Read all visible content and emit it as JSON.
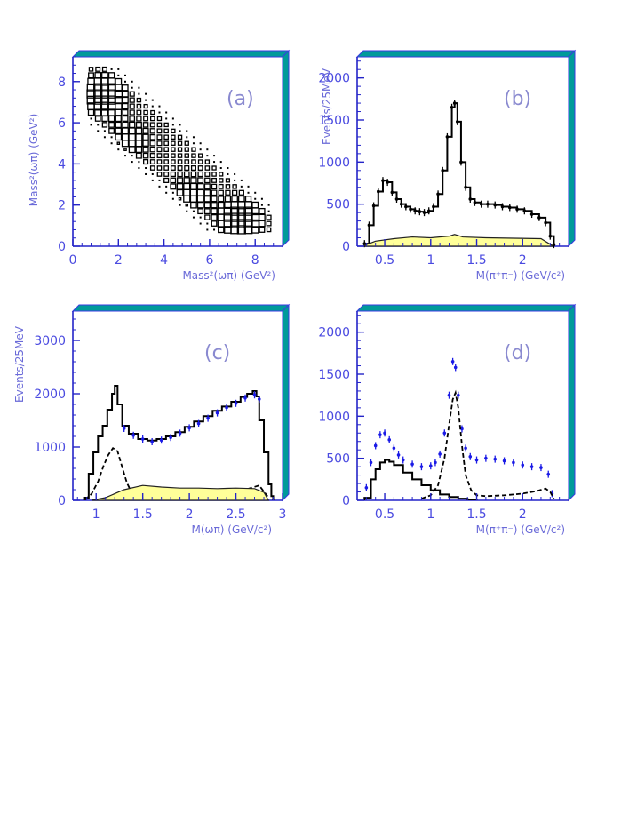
{
  "chart_data": [
    {
      "panel": "(a)",
      "type": "heatmap",
      "xlabel": "Mass²(ωπ) (GeV²)",
      "ylabel": "Mass²(ωπ) (GeV²)",
      "xlim": [
        0,
        9.2
      ],
      "ylim": [
        0,
        9.2
      ],
      "x_ticks": [
        0,
        2,
        4,
        6,
        8
      ],
      "y_ticks": [
        0,
        2,
        4,
        6,
        8
      ],
      "grid": false,
      "hotspots": [
        [
          1.3,
          7.4,
          1.0
        ],
        [
          7.4,
          1.3,
          1.0
        ],
        [
          2.5,
          5.2,
          0.45
        ],
        [
          5.2,
          2.5,
          0.45
        ]
      ]
    },
    {
      "panel": "(b)",
      "type": "line",
      "xlabel": "M(π⁺π⁻) (GeV/c²)",
      "ylabel": "Events/25MeV",
      "xlim": [
        0.2,
        2.5
      ],
      "ylim": [
        0,
        2250
      ],
      "x_ticks": [
        0.5,
        1,
        1.5,
        2
      ],
      "x_tick_labels": [
        "0.5",
        "1",
        "1.5",
        "2"
      ],
      "y_ticks": [
        0,
        500,
        1000,
        1500,
        2000
      ],
      "series": [
        {
          "style": "data-black",
          "x": [
            0.28,
            0.33,
            0.38,
            0.43,
            0.48,
            0.53,
            0.58,
            0.63,
            0.68,
            0.73,
            0.78,
            0.83,
            0.88,
            0.93,
            0.98,
            1.03,
            1.08,
            1.13,
            1.18,
            1.23,
            1.26,
            1.29,
            1.33,
            1.38,
            1.43,
            1.48,
            1.55,
            1.62,
            1.7,
            1.78,
            1.86,
            1.94,
            2.02,
            2.1,
            2.18,
            2.25,
            2.3,
            2.34
          ],
          "y": [
            30,
            250,
            480,
            650,
            780,
            760,
            640,
            560,
            500,
            470,
            440,
            420,
            410,
            400,
            420,
            470,
            620,
            900,
            1300,
            1650,
            1700,
            1480,
            1000,
            700,
            560,
            520,
            500,
            500,
            490,
            470,
            460,
            440,
            420,
            380,
            340,
            280,
            120,
            20
          ]
        },
        {
          "style": "background-fill",
          "x": [
            0.28,
            0.4,
            0.6,
            0.8,
            1.0,
            1.2,
            1.26,
            1.35,
            1.6,
            1.9,
            2.2,
            2.32
          ],
          "y": [
            10,
            60,
            90,
            110,
            100,
            120,
            140,
            110,
            100,
            95,
            90,
            10
          ]
        }
      ]
    },
    {
      "panel": "(c)",
      "type": "line",
      "xlabel": "M(ωπ) (GeV/c²)",
      "ylabel": "Events/25MeV",
      "xlim": [
        0.75,
        3.0
      ],
      "ylim": [
        0,
        3550
      ],
      "x_ticks": [
        1,
        1.5,
        2,
        2.5,
        3
      ],
      "x_tick_labels": [
        "1",
        "1.5",
        "2",
        "2.5",
        "3"
      ],
      "y_ticks": [
        0,
        1000,
        2000,
        3000
      ],
      "series": [
        {
          "style": "fit-solid",
          "x": [
            0.87,
            0.92,
            0.97,
            1.02,
            1.07,
            1.12,
            1.17,
            1.2,
            1.23,
            1.28,
            1.35,
            1.45,
            1.55,
            1.65,
            1.75,
            1.85,
            1.95,
            2.05,
            2.15,
            2.25,
            2.35,
            2.45,
            2.55,
            2.62,
            2.68,
            2.72,
            2.75,
            2.8,
            2.85,
            2.88,
            2.9
          ],
          "y": [
            50,
            500,
            900,
            1200,
            1400,
            1700,
            2000,
            2150,
            1800,
            1400,
            1250,
            1150,
            1120,
            1150,
            1200,
            1280,
            1380,
            1480,
            1580,
            1680,
            1760,
            1850,
            1940,
            2000,
            2050,
            1950,
            1500,
            900,
            300,
            80,
            0
          ]
        },
        {
          "style": "data-blue",
          "x": [
            1.3,
            1.4,
            1.5,
            1.6,
            1.7,
            1.8,
            1.9,
            2.0,
            2.1,
            2.2,
            2.3,
            2.4,
            2.5,
            2.6,
            2.7,
            2.75
          ],
          "y": [
            1350,
            1220,
            1150,
            1100,
            1130,
            1180,
            1260,
            1360,
            1440,
            1540,
            1640,
            1740,
            1820,
            1920,
            1980,
            1900
          ]
        },
        {
          "style": "dashed-component",
          "x": [
            0.88,
            0.95,
            1.02,
            1.08,
            1.13,
            1.18,
            1.23,
            1.28,
            1.33,
            1.38,
            1.42,
            1.5,
            1.6,
            1.8,
            2.0,
            2.2,
            2.4,
            2.6,
            2.75,
            2.85
          ],
          "y": [
            10,
            120,
            350,
            650,
            850,
            980,
            920,
            620,
            330,
            150,
            80,
            120,
            180,
            200,
            210,
            200,
            190,
            200,
            280,
            50
          ]
        },
        {
          "style": "background-fill",
          "x": [
            0.95,
            1.1,
            1.3,
            1.5,
            1.7,
            1.9,
            2.1,
            2.3,
            2.5,
            2.7,
            2.8,
            2.85
          ],
          "y": [
            0,
            50,
            200,
            280,
            250,
            230,
            230,
            220,
            230,
            220,
            150,
            0
          ]
        }
      ]
    },
    {
      "panel": "(d)",
      "type": "line",
      "xlabel": "M(π⁺π⁻) (GeV/c²)",
      "xlim": [
        0.2,
        2.5
      ],
      "ylim": [
        0,
        2250
      ],
      "x_ticks": [
        0.5,
        1,
        1.5,
        2
      ],
      "x_tick_labels": [
        "0.5",
        "1",
        "1.5",
        "2"
      ],
      "y_ticks": [
        0,
        500,
        1000,
        1500,
        2000
      ],
      "series": [
        {
          "style": "data-blue",
          "x": [
            0.3,
            0.35,
            0.4,
            0.45,
            0.5,
            0.55,
            0.6,
            0.65,
            0.7,
            0.8,
            0.9,
            1.0,
            1.05,
            1.1,
            1.15,
            1.2,
            1.24,
            1.27,
            1.3,
            1.34,
            1.38,
            1.43,
            1.5,
            1.6,
            1.7,
            1.8,
            1.9,
            2.0,
            2.1,
            2.2,
            2.28,
            2.32
          ],
          "y": [
            150,
            450,
            650,
            780,
            800,
            720,
            620,
            540,
            480,
            430,
            400,
            410,
            450,
            550,
            800,
            1250,
            1650,
            1580,
            1250,
            850,
            620,
            520,
            480,
            500,
            490,
            470,
            450,
            420,
            400,
            390,
            310,
            80
          ]
        },
        {
          "style": "fit-solid",
          "x": [
            0.28,
            0.35,
            0.4,
            0.45,
            0.5,
            0.55,
            0.6,
            0.7,
            0.8,
            0.9,
            1.0,
            1.1,
            1.2,
            1.3,
            1.4,
            1.5
          ],
          "y": [
            30,
            250,
            370,
            450,
            480,
            460,
            420,
            330,
            250,
            180,
            120,
            70,
            40,
            20,
            10,
            5
          ]
        },
        {
          "style": "dashed-component",
          "x": [
            0.9,
            1.0,
            1.08,
            1.15,
            1.2,
            1.24,
            1.27,
            1.3,
            1.34,
            1.38,
            1.44,
            1.5,
            1.6,
            1.8,
            2.0,
            2.15,
            2.25,
            2.3,
            2.34
          ],
          "y": [
            20,
            60,
            180,
            500,
            900,
            1200,
            1280,
            1100,
            650,
            300,
            120,
            60,
            50,
            60,
            80,
            110,
            140,
            100,
            20
          ]
        }
      ]
    }
  ],
  "labels": {
    "a": "(a)",
    "b": "(b)",
    "c": "(c)",
    "d": "(d)",
    "ylabel_a": "Mass²(ωπ) (GeV²)",
    "xlabel_a": "Mass²(ωπ) (GeV²)",
    "ylabel_b": "Events/25MeV",
    "xlabel_b": "M(π⁺π⁻) (GeV/c²)",
    "ylabel_c": "Events/25MeV",
    "xlabel_c": "M(ωπ) (GeV/c²)",
    "xlabel_d": "M(π⁺π⁻) (GeV/c²)"
  },
  "colors": {
    "axis": "#2424c8",
    "frame_fill": "#009a9a",
    "frame_edge": "#3a3ae0",
    "data_blue": "#1a1ae6",
    "background_fill": "#ffff99"
  }
}
